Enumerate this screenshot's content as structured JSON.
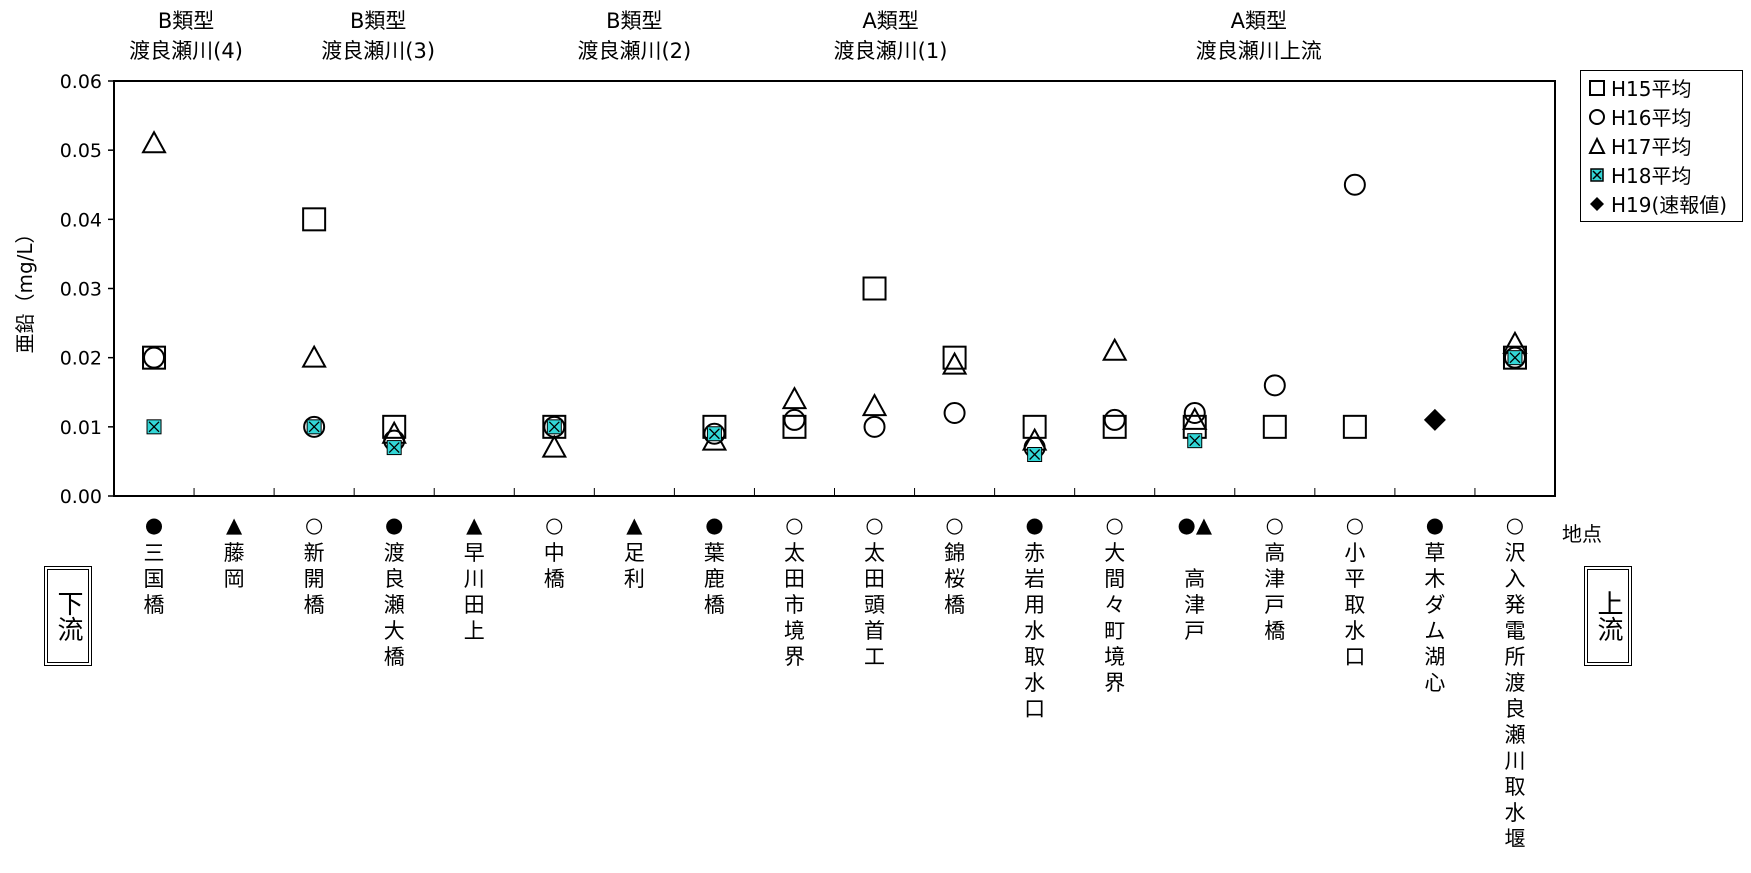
{
  "chart_data": {
    "type": "scatter",
    "ylabel": "亜鉛（mg/L）",
    "ylim": [
      0,
      0.06
    ],
    "yticks": [
      "0.00",
      "0.01",
      "0.02",
      "0.03",
      "0.04",
      "0.05",
      "0.06"
    ],
    "grid": true,
    "legend_position": "right",
    "location_label": "地点",
    "downstream_label": "下流",
    "upstream_label": "上流",
    "groups": [
      {
        "type": "B類型",
        "name": "渡良瀬川(4)"
      },
      {
        "type": "B類型",
        "name": "渡良瀬川(3)"
      },
      {
        "type": "B類型",
        "name": "渡良瀬川(2)"
      },
      {
        "type": "A類型",
        "name": "渡良瀬川(1)"
      },
      {
        "type": "A類型",
        "name": "渡良瀬川上流"
      }
    ],
    "categories": [
      {
        "mark": "●",
        "name": "三国橋"
      },
      {
        "mark": "▲",
        "name": "藤岡"
      },
      {
        "mark": "○",
        "name": "新開橋"
      },
      {
        "mark": "●",
        "name": "渡良瀬大橋"
      },
      {
        "mark": "▲",
        "name": "早川田上"
      },
      {
        "mark": "○",
        "name": "中橋"
      },
      {
        "mark": "▲",
        "name": "足利"
      },
      {
        "mark": "●",
        "name": "葉鹿橋"
      },
      {
        "mark": "○",
        "name": "太田市境界"
      },
      {
        "mark": "○",
        "name": "太田頭首工"
      },
      {
        "mark": "○",
        "name": "錦桜橋"
      },
      {
        "mark": "●",
        "name": "赤岩用水取水口"
      },
      {
        "mark": "○",
        "name": "大間々町境界"
      },
      {
        "mark": "●▲",
        "name": "高津戸"
      },
      {
        "mark": "○",
        "name": "高津戸橋"
      },
      {
        "mark": "○",
        "name": "小平取水口"
      },
      {
        "mark": "●",
        "name": "草木ダム湖心"
      },
      {
        "mark": "○",
        "name": "沢入発電所渡良瀬川取水堰"
      }
    ],
    "series": [
      {
        "name": "H15平均",
        "marker": "square",
        "values": [
          0.02,
          null,
          0.04,
          0.01,
          null,
          0.01,
          null,
          0.01,
          0.01,
          0.03,
          0.02,
          0.01,
          0.01,
          0.01,
          0.01,
          0.01,
          null,
          0.02
        ]
      },
      {
        "name": "H16平均",
        "marker": "circle",
        "values": [
          0.02,
          null,
          0.01,
          0.008,
          null,
          0.01,
          null,
          0.009,
          0.011,
          0.01,
          0.012,
          0.007,
          0.011,
          0.012,
          0.016,
          0.045,
          null,
          0.02
        ]
      },
      {
        "name": "H17平均",
        "marker": "triangle",
        "values": [
          0.051,
          null,
          0.02,
          0.009,
          null,
          0.007,
          null,
          0.008,
          0.014,
          0.013,
          0.019,
          0.008,
          0.021,
          0.011,
          null,
          null,
          null,
          0.022
        ]
      },
      {
        "name": "H18平均",
        "marker": "xbox",
        "values": [
          0.01,
          null,
          0.01,
          0.007,
          null,
          0.01,
          null,
          0.009,
          null,
          null,
          null,
          0.006,
          null,
          0.008,
          null,
          null,
          null,
          0.02
        ]
      },
      {
        "name": "H19(速報値)",
        "marker": "diamond",
        "values": [
          null,
          null,
          null,
          null,
          null,
          null,
          null,
          null,
          null,
          null,
          null,
          null,
          null,
          null,
          null,
          null,
          0.011,
          null
        ]
      }
    ],
    "colors": {
      "h18_fill": "#33d6d6",
      "marker_stroke": "#000000",
      "marker_fill": "#ffffff"
    }
  }
}
